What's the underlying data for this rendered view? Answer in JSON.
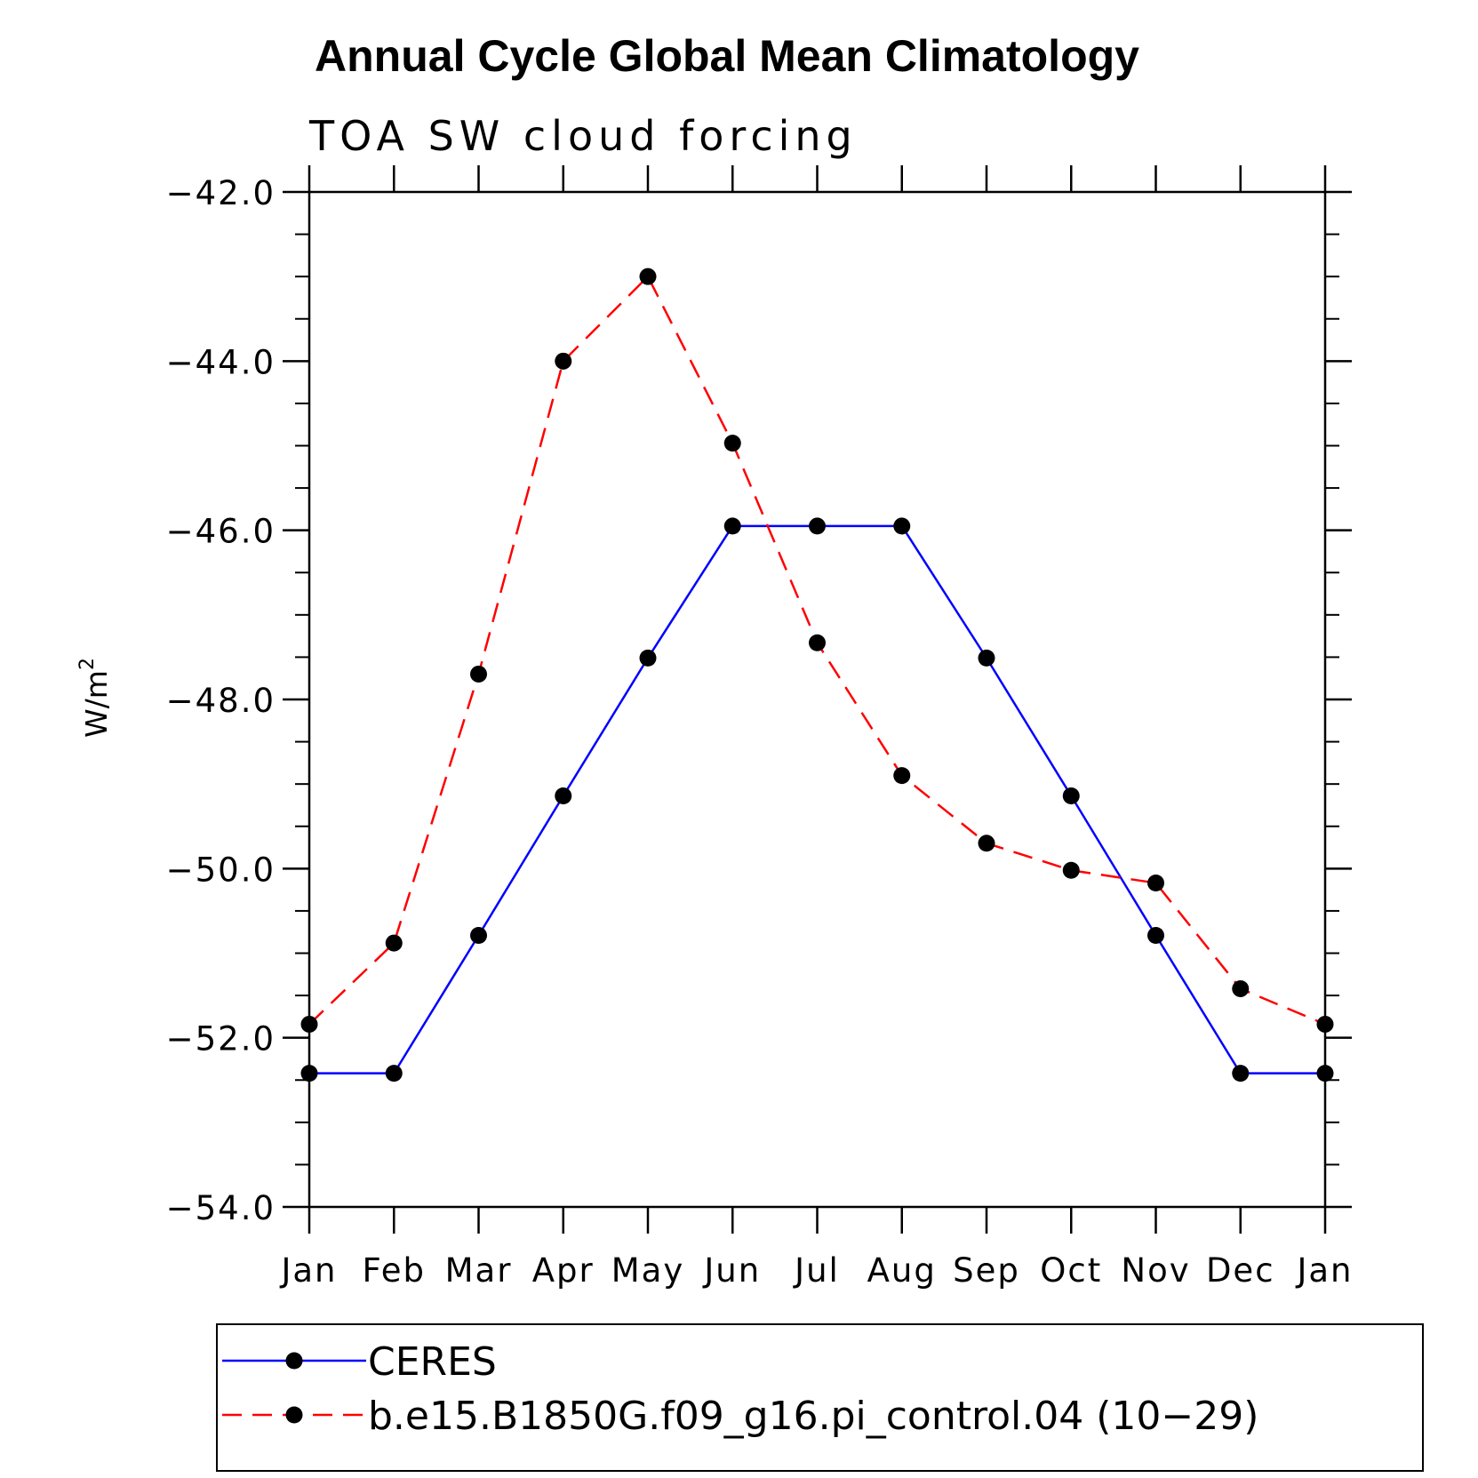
{
  "chart_data": {
    "type": "line",
    "title": "Annual Cycle Global Mean Climatology",
    "subtitle": "TOA SW cloud forcing",
    "ylabel": "W/m",
    "ylabel_sup": "2",
    "categories": [
      "Jan",
      "Feb",
      "Mar",
      "Apr",
      "May",
      "Jun",
      "Jul",
      "Aug",
      "Sep",
      "Oct",
      "Nov",
      "Dec",
      "Jan"
    ],
    "ylim": [
      -54.0,
      -42.0
    ],
    "yticks": [
      -42.0,
      -44.0,
      -46.0,
      -48.0,
      -50.0,
      -52.0,
      -54.0
    ],
    "ytick_labels": [
      "−42.0",
      "−44.0",
      "−46.0",
      "−48.0",
      "−50.0",
      "−52.0",
      "−54.0"
    ],
    "grid": false,
    "legend_position": "bottom",
    "series": [
      {
        "name": "CERES",
        "color": "#0000ff",
        "dash": "solid",
        "marker": "filled-circle",
        "values": [
          -52.42,
          -52.42,
          -50.79,
          -49.14,
          -47.51,
          -45.95,
          -45.95,
          -45.95,
          -47.51,
          -49.14,
          -50.79,
          -52.42,
          -52.42
        ]
      },
      {
        "name": "b.e15.B1850G.f09_g16.pi_control.04 (10−29)",
        "color": "#ff0000",
        "dash": "dashed",
        "marker": "filled-circle",
        "values": [
          -51.84,
          -50.88,
          -47.7,
          -44.0,
          -43.0,
          -44.97,
          -47.33,
          -48.9,
          -49.7,
          -50.02,
          -50.17,
          -51.42,
          -51.84
        ]
      }
    ]
  }
}
